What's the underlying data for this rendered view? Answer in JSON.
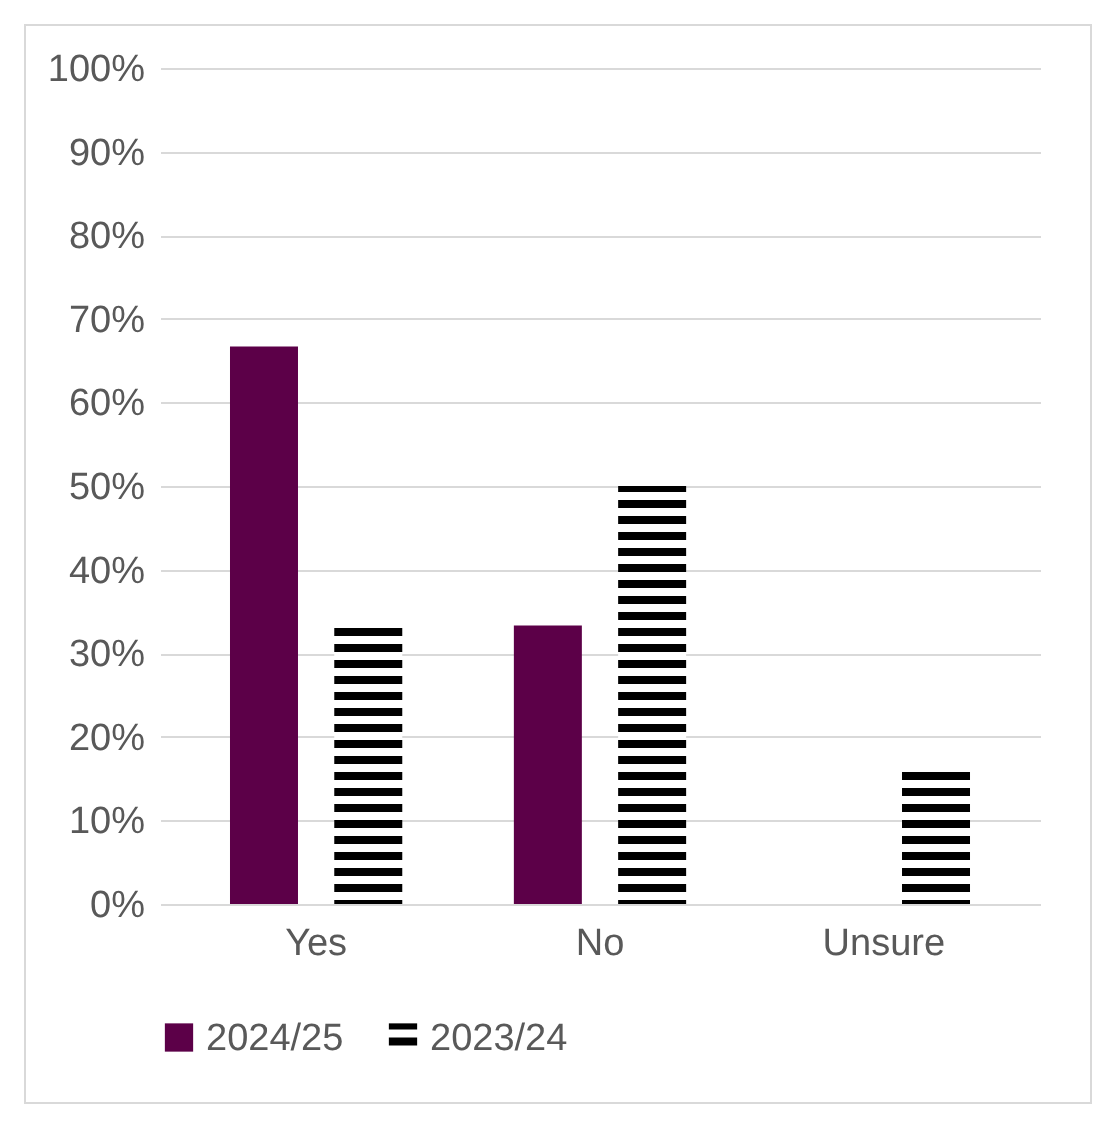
{
  "chart_data": {
    "type": "bar",
    "categories": [
      "Yes",
      "No",
      "Unsure"
    ],
    "series": [
      {
        "name": "2024/25",
        "color": "#5c0048",
        "values": [
          66.7,
          33.3,
          0
        ]
      },
      {
        "name": "2023/24",
        "color": "#000000",
        "values": [
          33.3,
          50,
          16.7
        ]
      }
    ],
    "ylim": [
      0,
      100
    ],
    "yticks": [
      {
        "value": 0,
        "label": "0%"
      },
      {
        "value": 10,
        "label": "10%"
      },
      {
        "value": 20,
        "label": "20%"
      },
      {
        "value": 30,
        "label": "30%"
      },
      {
        "value": 40,
        "label": "40%"
      },
      {
        "value": 50,
        "label": "50%"
      },
      {
        "value": 60,
        "label": "60%"
      },
      {
        "value": 70,
        "label": "70%"
      },
      {
        "value": 80,
        "label": "80%"
      },
      {
        "value": 90,
        "label": "90%"
      },
      {
        "value": 100,
        "label": "100%"
      }
    ],
    "grid": "y",
    "legend": "bottom"
  }
}
